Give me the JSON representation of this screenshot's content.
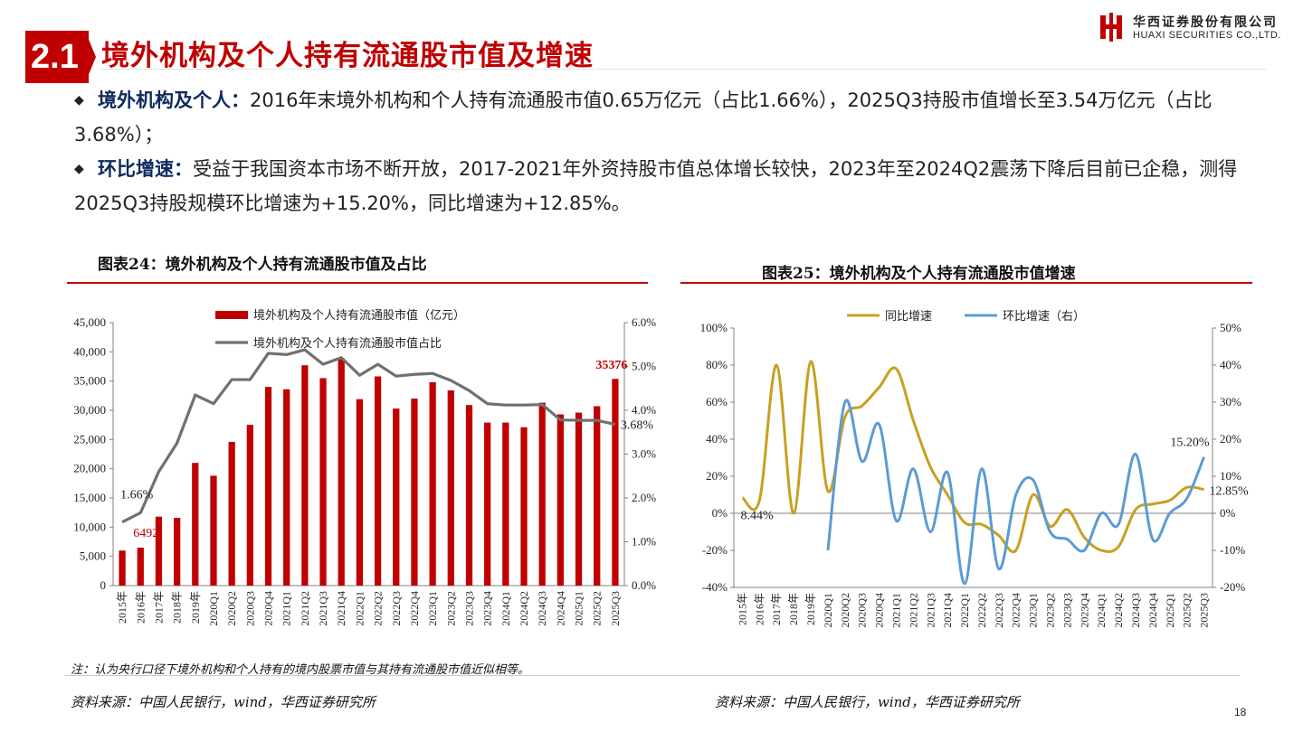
{
  "header": {
    "section_number": "2.1",
    "title": "境外机构及个人持有流通股市值及增速",
    "logo_cn": "华西证券股份有限公司",
    "logo_en": "HUAXI SECURITIES CO.,LTD."
  },
  "bullets": [
    {
      "key": "境外机构及个人：",
      "text": "2016年末境外机构和个人持有流通股市值0.65万亿元（占比1.66%），2025Q3持股市值增长至3.54万亿元（占比3.68%）；"
    },
    {
      "key": "环比增速：",
      "text": "受益于我国资本市场不断开放，2017-2021年外资持股市值总体增长较快，2023年至2024Q2震荡下降后目前已企稳，测得2025Q3持股规模环比增速为+15.20%，同比增速为+12.85%。"
    }
  ],
  "figures": {
    "left_title": "图表24：境外机构及个人持有流通股市值及占比",
    "right_title": "图表25：境外机构及个人持有流通股市值增速"
  },
  "note": "注：认为央行口径下境外机构和个人持有的境内股票市值与其持有流通股市值近似相等。",
  "sources": {
    "left": "资料来源：中国人民银行，wind，华西证券研究所",
    "right": "资料来源：中国人民银行，wind，华西证券研究所"
  },
  "page_number": "18",
  "colors": {
    "accent": "#c00000",
    "gray_line": "#707070",
    "gold_line": "#c8a020",
    "blue_line": "#5b9bd5"
  },
  "chart_data": [
    {
      "type": "bar",
      "title": "",
      "categories": [
        "2015年",
        "2016年",
        "2017年",
        "2018年",
        "2019年",
        "2020Q1",
        "2020Q2",
        "2020Q3",
        "2020Q4",
        "2021Q1",
        "2021Q2",
        "2021Q3",
        "2021Q4",
        "2022Q1",
        "2022Q2",
        "2022Q3",
        "2022Q4",
        "2023Q1",
        "2023Q2",
        "2023Q3",
        "2023Q4",
        "2024Q1",
        "2024Q2",
        "2024Q3",
        "2024Q4",
        "2025Q1",
        "2025Q2",
        "2025Q3"
      ],
      "series": [
        {
          "name": "境外机构及个人持有流通股市值（亿元）",
          "type": "bar",
          "axis": "left",
          "values": [
            6000,
            6492,
            11800,
            11600,
            21000,
            18800,
            24600,
            27500,
            34000,
            33600,
            37700,
            35500,
            38900,
            31900,
            35800,
            30300,
            32000,
            34800,
            33400,
            30900,
            27900,
            27900,
            27100,
            31300,
            29300,
            29600,
            30700,
            35376
          ]
        },
        {
          "name": "境外机构及个人持有流通股市值占比",
          "type": "line",
          "axis": "right",
          "unit": "%",
          "values": [
            1.45,
            1.66,
            2.6,
            3.25,
            4.35,
            4.15,
            4.7,
            4.7,
            5.3,
            5.27,
            5.38,
            5.05,
            5.2,
            4.8,
            5.05,
            4.78,
            4.82,
            4.84,
            4.68,
            4.45,
            4.15,
            4.12,
            4.12,
            4.13,
            3.78,
            3.77,
            3.77,
            3.68
          ]
        }
      ],
      "yleft": {
        "min": 0,
        "max": 45000,
        "ticks": [
          "0",
          "5,000",
          "10,000",
          "15,000",
          "20,000",
          "25,000",
          "30,000",
          "35,000",
          "40,000",
          "45,000"
        ]
      },
      "yright": {
        "min": 0,
        "max": 6,
        "ticks": [
          "0.0%",
          "1.0%",
          "2.0%",
          "3.0%",
          "4.0%",
          "5.0%",
          "6.0%"
        ]
      },
      "annotations": [
        {
          "text": "1.66%",
          "series": 1,
          "index": 1
        },
        {
          "text": "6492",
          "series": 0,
          "index": 1,
          "color": "#c00000"
        },
        {
          "text": "35376",
          "series": 0,
          "index": 27,
          "color": "#c00000"
        },
        {
          "text": "3.68%",
          "series": 1,
          "index": 27
        }
      ],
      "legend": "top-left"
    },
    {
      "type": "line",
      "title": "",
      "categories": [
        "2015年",
        "2016年",
        "2017年",
        "2018年",
        "2019年",
        "2020Q1",
        "2020Q2",
        "2020Q3",
        "2020Q4",
        "2021Q1",
        "2021Q2",
        "2021Q3",
        "2021Q4",
        "2022Q1",
        "2022Q2",
        "2022Q3",
        "2022Q4",
        "2023Q1",
        "2023Q2",
        "2023Q3",
        "2023Q4",
        "2024Q1",
        "2024Q2",
        "2024Q3",
        "2024Q4",
        "2025Q1",
        "2025Q2",
        "2025Q3"
      ],
      "series": [
        {
          "name": "同比增速",
          "axis": "left",
          "unit": "%",
          "values": [
            8.44,
            7,
            80,
            0,
            82,
            12,
            52,
            58,
            68,
            78,
            50,
            25,
            10,
            -5,
            -6,
            -12,
            -20,
            10,
            -7,
            2,
            -13,
            -20,
            -18,
            2,
            5,
            7,
            14,
            12.85
          ]
        },
        {
          "name": "环比增速（右）",
          "axis": "right",
          "unit": "%",
          "values": [
            null,
            null,
            null,
            null,
            null,
            -10,
            30,
            14,
            24,
            -2,
            12,
            -5,
            11,
            -19,
            12,
            -15,
            5,
            9,
            -5,
            -7,
            -10,
            0,
            -3,
            16,
            -7,
            0,
            4,
            15.2
          ]
        }
      ],
      "yleft": {
        "min": -40,
        "max": 100,
        "ticks": [
          "-40%",
          "-20%",
          "0%",
          "20%",
          "40%",
          "60%",
          "80%",
          "100%"
        ]
      },
      "yright": {
        "min": -20,
        "max": 50,
        "ticks": [
          "-20%",
          "-10%",
          "0%",
          "10%",
          "20%",
          "30%",
          "40%",
          "50%"
        ]
      },
      "annotations": [
        {
          "text": "8.44%",
          "series": 0,
          "index": 0
        },
        {
          "text": "15.20%",
          "series": 1,
          "index": 27
        },
        {
          "text": "12.85%",
          "series": 0,
          "index": 27
        }
      ],
      "legend": "top"
    }
  ]
}
